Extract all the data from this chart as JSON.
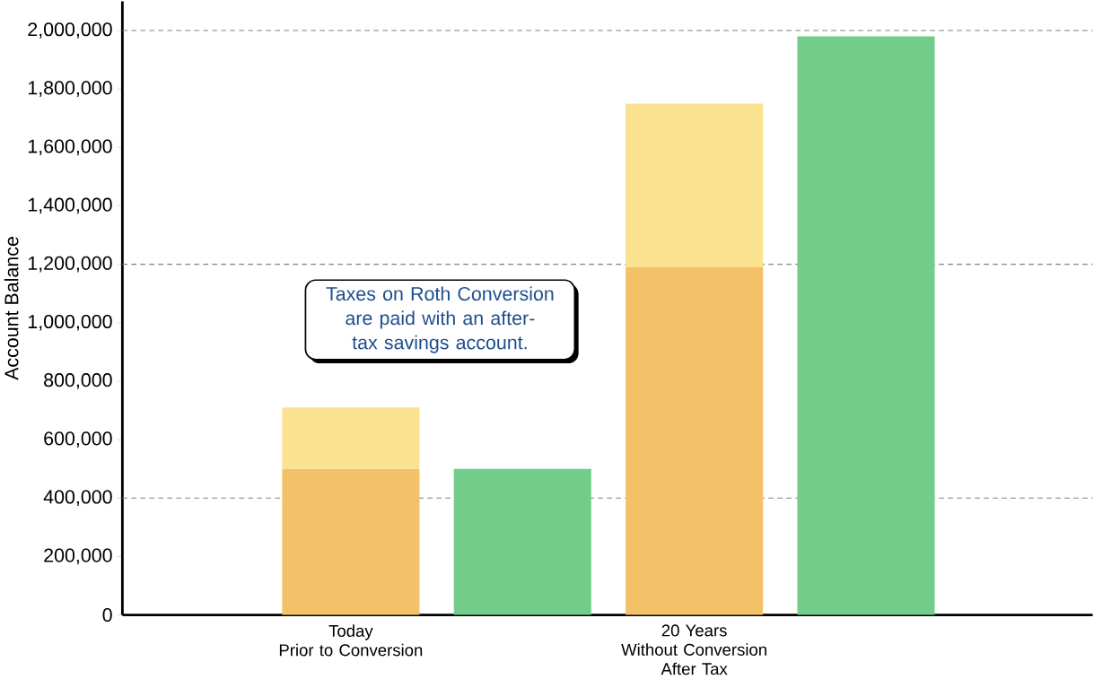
{
  "chart_data": {
    "type": "bar",
    "stacked": true,
    "ylabel": "Account Balance",
    "categories": [
      "Today\nPrior to Conversion",
      null,
      "20 Years\nWithout Conversion\nAfter Tax",
      null
    ],
    "series": [
      {
        "color": "#f3c168",
        "values": [
          500000,
          null,
          1190000,
          null
        ]
      },
      {
        "color": "#fbe290",
        "values": [
          210000,
          null,
          560000,
          null
        ]
      },
      {
        "color": "#72cd8a",
        "values": [
          null,
          500000,
          null,
          1980000
        ]
      }
    ],
    "ylim": [
      0,
      2100000
    ],
    "yticks": [
      0,
      {
        "value": 200000,
        "label": "200,000"
      },
      {
        "value": 400000,
        "label": "400,000"
      },
      {
        "value": 600000,
        "label": "600,000"
      },
      {
        "value": 800000,
        "label": "800,000"
      },
      {
        "value": 1000000,
        "label": "1,000,000"
      },
      {
        "value": 1200000,
        "label": "1,200,000"
      },
      {
        "value": 1400000,
        "label": "1,400,000"
      },
      {
        "value": 1600000,
        "label": "1,600,000"
      },
      {
        "value": 1800000,
        "label": "1,800,000"
      },
      {
        "value": 2000000,
        "label": "2,000,000"
      }
    ],
    "ref_lines": [
      {
        "axis": "y",
        "value": 400000,
        "color": "#808080",
        "line_style": "dashed"
      },
      {
        "axis": "y",
        "value": 1200000,
        "color": "#808080",
        "line_style": "dashed"
      },
      {
        "axis": "y",
        "value": 2000000,
        "color": "#808080",
        "line_style": "dashed"
      }
    ],
    "annotations": [
      "Taxes on Roth Conversion are paid with an after-tax savings account."
    ],
    "grid": false
  }
}
